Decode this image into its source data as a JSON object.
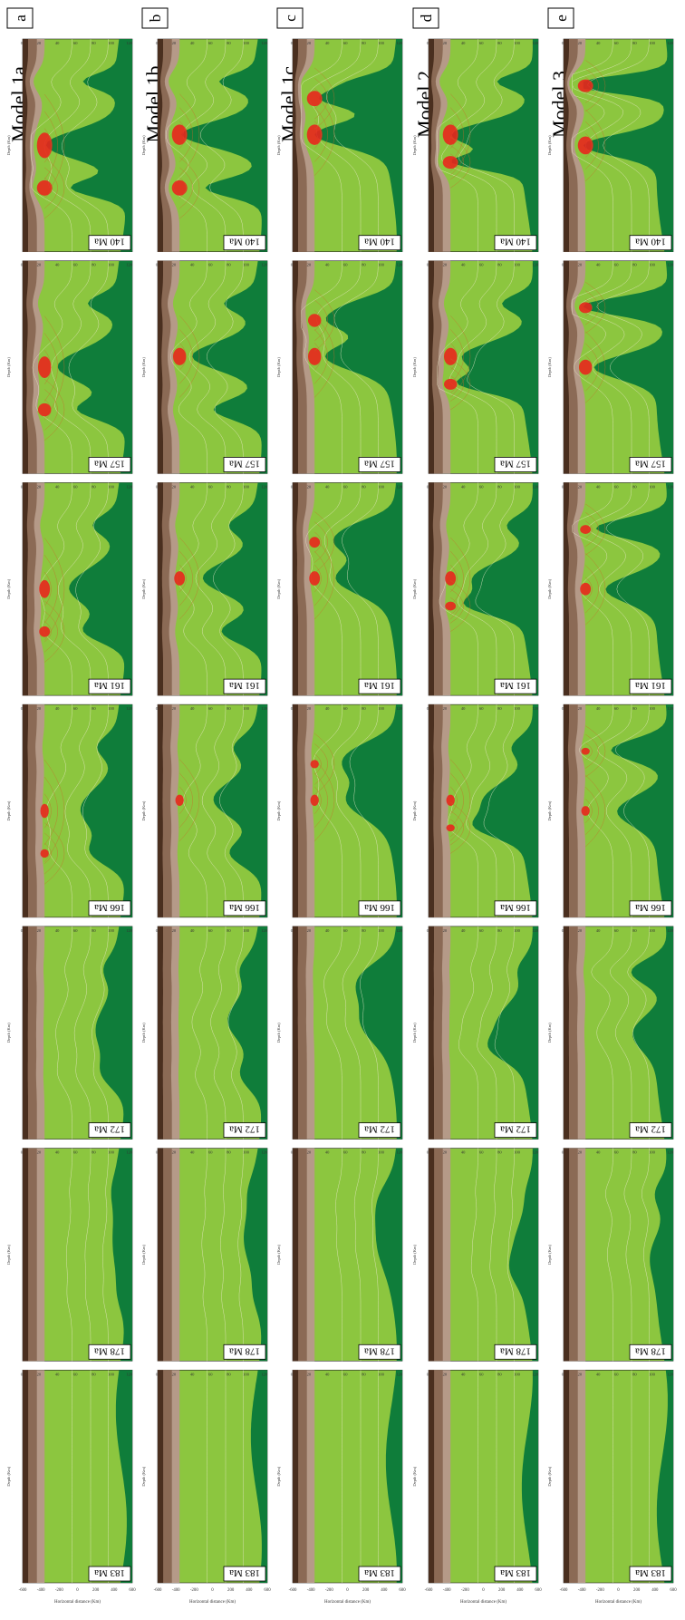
{
  "figure": {
    "age_labels": [
      "140 Ma",
      "157 Ma",
      "161 Ma",
      "166 Ma",
      "172 Ma",
      "178 Ma",
      "183 Ma"
    ],
    "depth_axis_label": "Depth (Km)",
    "horizontal_axis_label": "Horizontal distance (Km)",
    "colors": {
      "sediment_dark": "#4a2f1f",
      "upper_crust": "#8b6a55",
      "lower_crust": "#b59a88",
      "lithospheric_mantle": "#8cc63f",
      "asthenosphere": "#0f7d3a",
      "melt": "#e8261d",
      "isotherm": "#e9e9c9"
    },
    "models": [
      {
        "letter": "a",
        "title": "Model 1a",
        "depth_ticks": [
          "0",
          "20",
          "40",
          "60",
          "80",
          "100",
          "120"
        ],
        "x_ticks": [
          "-600",
          "-400",
          "-200",
          "0",
          "200",
          "400",
          "600"
        ],
        "panels": [
          {
            "age": "140 Ma",
            "stage": 0
          },
          {
            "age": "157 Ma",
            "stage": 1
          },
          {
            "age": "161 Ma",
            "stage": 2
          },
          {
            "age": "166 Ma",
            "stage": 3
          },
          {
            "age": "172 Ma",
            "stage": 4
          },
          {
            "age": "178 Ma",
            "stage": 5
          },
          {
            "age": "183 Ma",
            "stage": 6
          }
        ]
      },
      {
        "letter": "b",
        "title": "Model 1b",
        "depth_ticks": [
          "0",
          "20",
          "40",
          "60",
          "80",
          "100",
          "120"
        ],
        "x_ticks": [
          "-600",
          "-400",
          "-200",
          "0",
          "200",
          "400",
          "600"
        ],
        "panels": [
          {
            "age": "140 Ma",
            "stage": 0
          },
          {
            "age": "157 Ma",
            "stage": 1
          },
          {
            "age": "161 Ma",
            "stage": 2
          },
          {
            "age": "166 Ma",
            "stage": 3
          },
          {
            "age": "172 Ma",
            "stage": 4
          },
          {
            "age": "178 Ma",
            "stage": 5
          },
          {
            "age": "183 Ma",
            "stage": 6
          }
        ]
      },
      {
        "letter": "c",
        "title": "Model 1c",
        "depth_ticks": [
          "0",
          "20",
          "40",
          "60",
          "80",
          "100",
          "120"
        ],
        "x_ticks": [
          "-600",
          "-400",
          "-200",
          "0",
          "200",
          "400",
          "600"
        ],
        "panels": [
          {
            "age": "140 Ma",
            "stage": 0
          },
          {
            "age": "157 Ma",
            "stage": 1
          },
          {
            "age": "161 Ma",
            "stage": 2
          },
          {
            "age": "166 Ma",
            "stage": 3
          },
          {
            "age": "172 Ma",
            "stage": 4
          },
          {
            "age": "178 Ma",
            "stage": 5
          },
          {
            "age": "183 Ma",
            "stage": 6
          }
        ]
      },
      {
        "letter": "d",
        "title": "Model 2",
        "depth_ticks": [
          "0",
          "20",
          "40",
          "60",
          "80",
          "100",
          "120"
        ],
        "x_ticks": [
          "-600",
          "-400",
          "-200",
          "0",
          "200",
          "400",
          "600"
        ],
        "panels": [
          {
            "age": "140 Ma",
            "stage": 0
          },
          {
            "age": "157 Ma",
            "stage": 1
          },
          {
            "age": "161 Ma",
            "stage": 2
          },
          {
            "age": "166 Ma",
            "stage": 3
          },
          {
            "age": "172 Ma",
            "stage": 4
          },
          {
            "age": "178 Ma",
            "stage": 5
          },
          {
            "age": "183 Ma",
            "stage": 6
          }
        ]
      },
      {
        "letter": "e",
        "title": "Model 3",
        "depth_ticks": [
          "0",
          "20",
          "40",
          "60",
          "80",
          "100",
          "120"
        ],
        "x_ticks": [
          "-600",
          "-400",
          "-200",
          "0",
          "200",
          "400",
          "600"
        ],
        "panels": [
          {
            "age": "140 Ma",
            "stage": 0
          },
          {
            "age": "157 Ma",
            "stage": 1
          },
          {
            "age": "161 Ma",
            "stage": 2
          },
          {
            "age": "166 Ma",
            "stage": 3
          },
          {
            "age": "172 Ma",
            "stage": 4
          },
          {
            "age": "178 Ma",
            "stage": 5
          },
          {
            "age": "183 Ma",
            "stage": 6
          }
        ]
      }
    ]
  }
}
